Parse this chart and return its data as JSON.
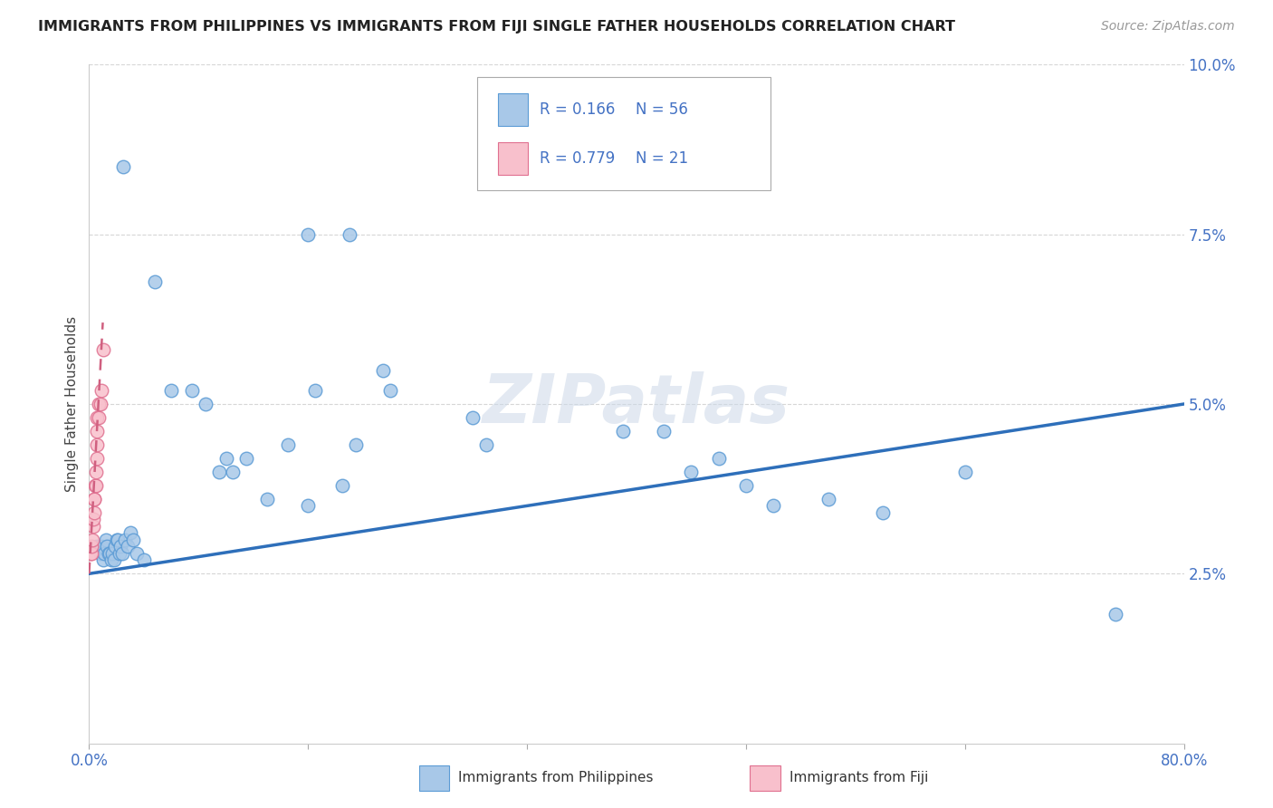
{
  "title": "IMMIGRANTS FROM PHILIPPINES VS IMMIGRANTS FROM FIJI SINGLE FATHER HOUSEHOLDS CORRELATION CHART",
  "source": "Source: ZipAtlas.com",
  "ylabel": "Single Father Households",
  "xlim": [
    0.0,
    0.8
  ],
  "ylim": [
    0.0,
    0.1
  ],
  "background_color": "#ffffff",
  "watermark": "ZIPatlas",
  "legend_R1": "R = 0.166",
  "legend_N1": "N = 56",
  "legend_R2": "R = 0.779",
  "legend_N2": "N = 21",
  "blue_scatter_face": "#a8c8e8",
  "blue_scatter_edge": "#5b9bd5",
  "pink_scatter_face": "#f8c0cc",
  "pink_scatter_edge": "#e07090",
  "blue_line_color": "#2e6fba",
  "pink_line_color": "#d06080",
  "grid_color": "#cccccc",
  "tick_color": "#4472c4",
  "title_color": "#222222",
  "source_color": "#999999",
  "philippines_x": [
    0.025,
    0.048,
    0.19,
    0.16,
    0.165,
    0.215,
    0.22,
    0.28,
    0.29,
    0.39,
    0.42,
    0.44,
    0.46,
    0.48,
    0.5,
    0.54,
    0.58,
    0.64,
    0.095,
    0.105,
    0.115,
    0.13,
    0.145,
    0.16,
    0.185,
    0.195,
    0.06,
    0.075,
    0.085,
    0.1,
    0.006,
    0.007,
    0.008,
    0.009,
    0.01,
    0.011,
    0.012,
    0.013,
    0.014,
    0.015,
    0.016,
    0.017,
    0.018,
    0.019,
    0.02,
    0.021,
    0.022,
    0.023,
    0.024,
    0.026,
    0.028,
    0.03,
    0.032,
    0.035,
    0.04,
    0.75
  ],
  "philippines_y": [
    0.085,
    0.068,
    0.075,
    0.075,
    0.052,
    0.055,
    0.052,
    0.048,
    0.044,
    0.046,
    0.046,
    0.04,
    0.042,
    0.038,
    0.035,
    0.036,
    0.034,
    0.04,
    0.04,
    0.04,
    0.042,
    0.036,
    0.044,
    0.035,
    0.038,
    0.044,
    0.052,
    0.052,
    0.05,
    0.042,
    0.029,
    0.029,
    0.028,
    0.029,
    0.027,
    0.028,
    0.03,
    0.029,
    0.028,
    0.028,
    0.027,
    0.028,
    0.027,
    0.029,
    0.03,
    0.03,
    0.028,
    0.029,
    0.028,
    0.03,
    0.029,
    0.031,
    0.03,
    0.028,
    0.027,
    0.019
  ],
  "fiji_x": [
    0.001,
    0.0015,
    0.002,
    0.0025,
    0.003,
    0.003,
    0.0035,
    0.004,
    0.004,
    0.0045,
    0.005,
    0.005,
    0.0055,
    0.006,
    0.006,
    0.006,
    0.007,
    0.007,
    0.008,
    0.009,
    0.01
  ],
  "fiji_y": [
    0.028,
    0.028,
    0.029,
    0.03,
    0.032,
    0.033,
    0.034,
    0.036,
    0.036,
    0.038,
    0.038,
    0.04,
    0.042,
    0.044,
    0.046,
    0.048,
    0.048,
    0.05,
    0.05,
    0.052,
    0.058
  ],
  "blue_line_x0": 0.0,
  "blue_line_y0": 0.025,
  "blue_line_x1": 0.8,
  "blue_line_y1": 0.05,
  "pink_line_x0": 0.0,
  "pink_line_y0": 0.025,
  "pink_line_x1": 0.01,
  "pink_line_y1": 0.062
}
